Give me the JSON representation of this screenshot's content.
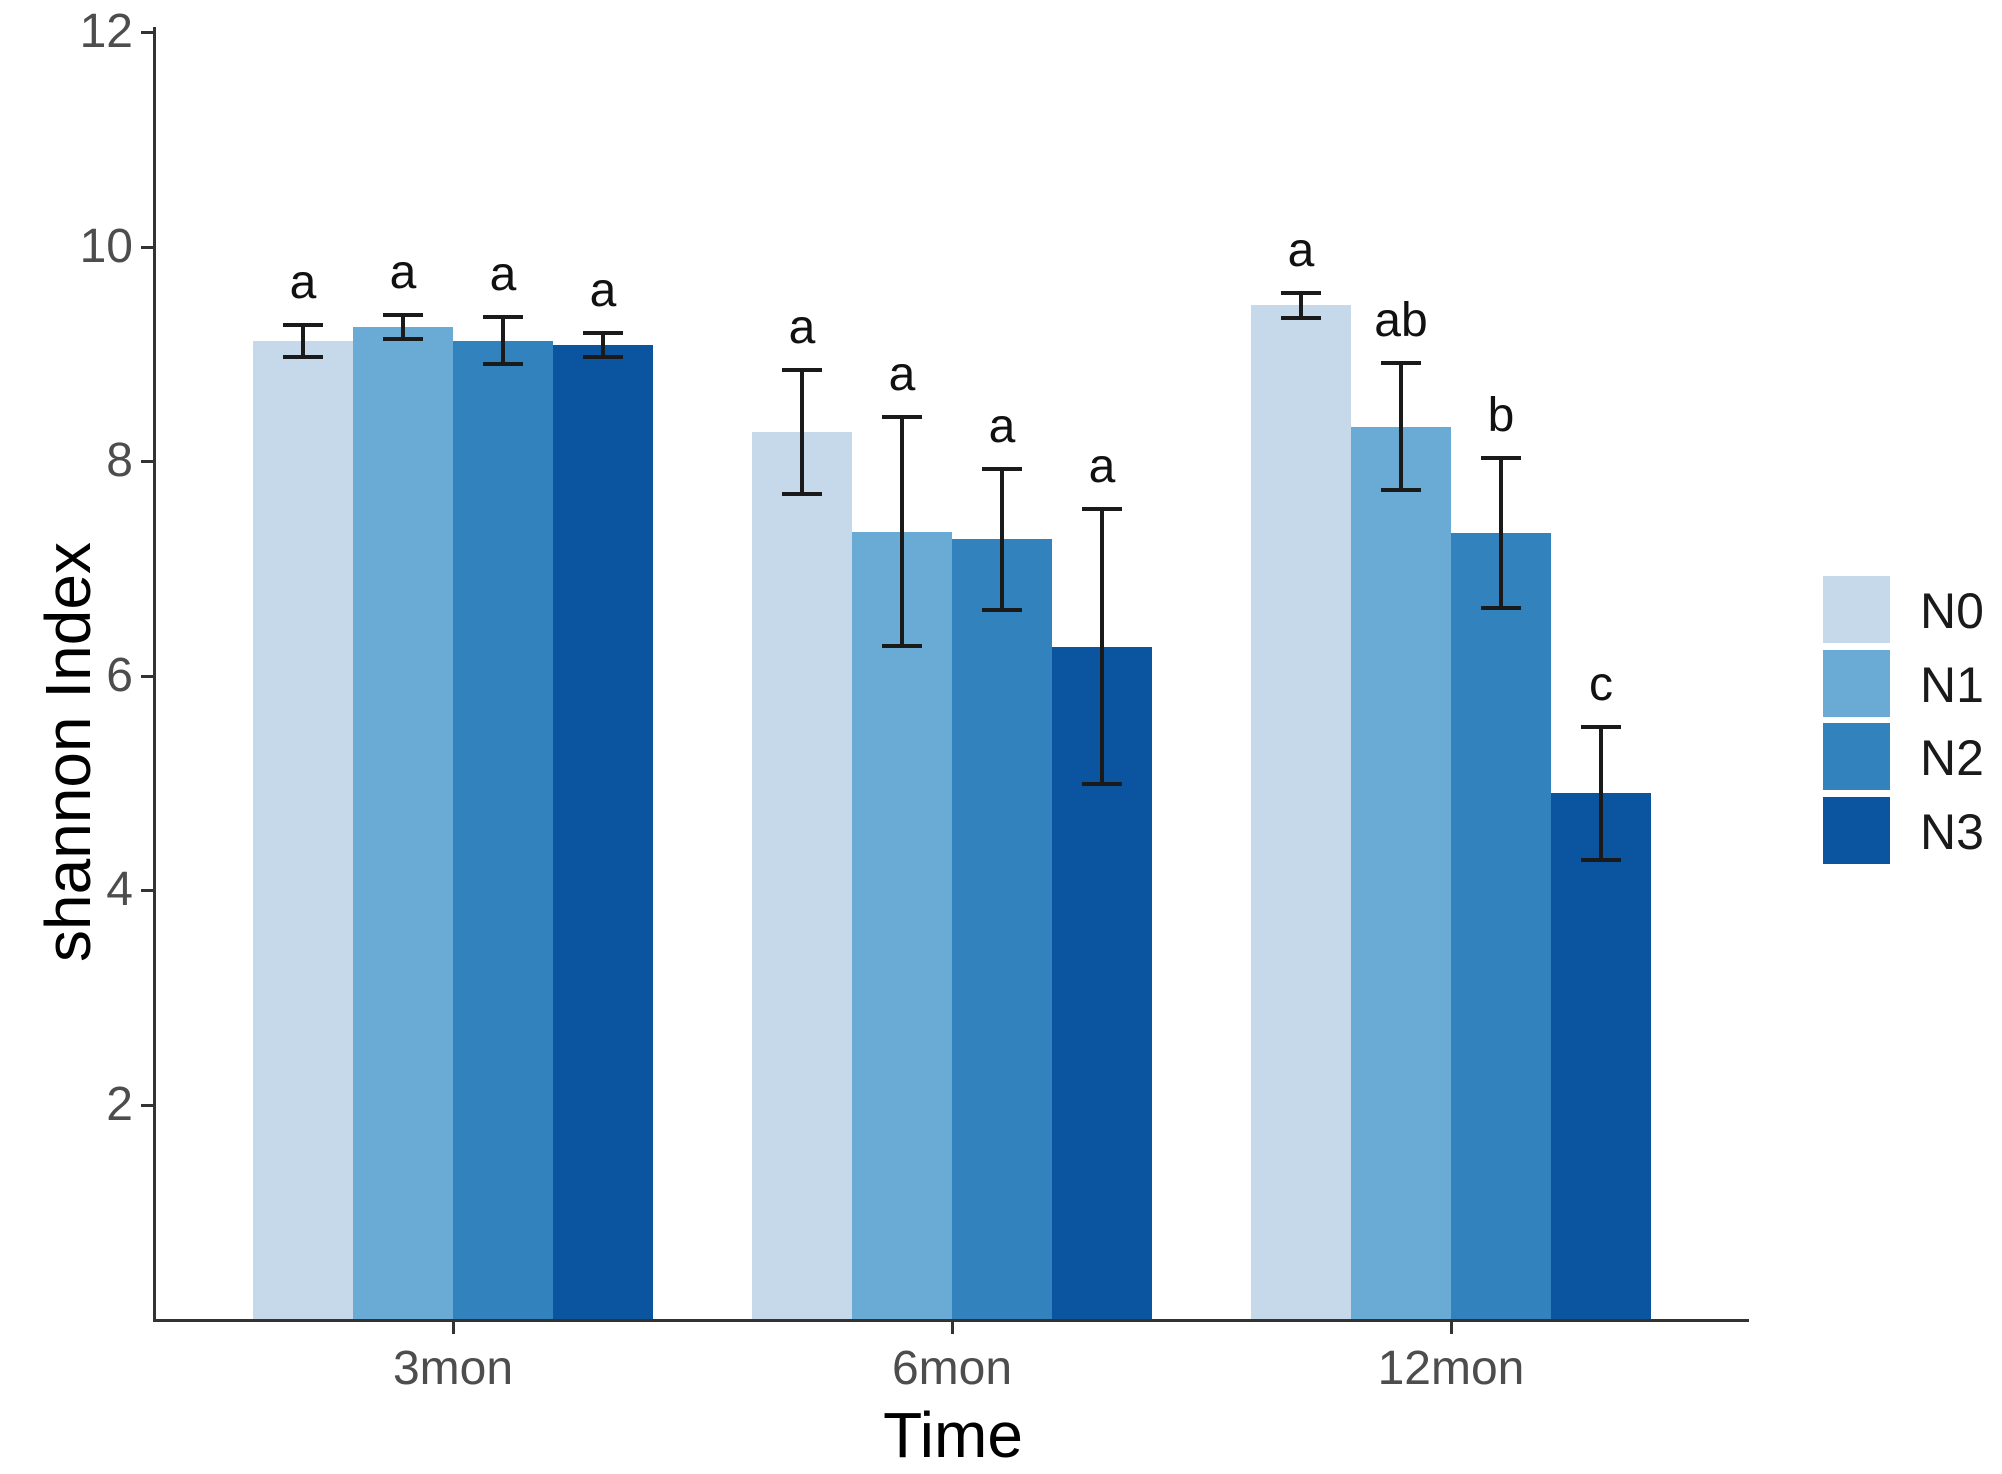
{
  "chart_data": {
    "type": "bar",
    "title": "",
    "xlabel": "Time",
    "ylabel": "shannon Index",
    "categories": [
      "3mon",
      "6mon",
      "12mon"
    ],
    "series": [
      {
        "name": "N0",
        "color": "#c5d9ea",
        "values": [
          9.12,
          8.27,
          9.45
        ],
        "errors": [
          0.14,
          0.57,
          0.11
        ],
        "letters": [
          "a",
          "a",
          "a"
        ]
      },
      {
        "name": "N1",
        "color": "#6aabd6",
        "values": [
          9.25,
          7.34,
          8.32
        ],
        "errors": [
          0.1,
          1.06,
          0.58
        ],
        "letters": [
          "a",
          "a",
          "ab"
        ]
      },
      {
        "name": "N2",
        "color": "#3182bd",
        "values": [
          9.12,
          7.27,
          7.33
        ],
        "errors": [
          0.21,
          0.65,
          0.69
        ],
        "letters": [
          "a",
          "a",
          "b"
        ]
      },
      {
        "name": "N3",
        "color": "#0b55a0",
        "values": [
          9.08,
          6.27,
          4.9
        ],
        "errors": [
          0.1,
          1.27,
          0.61
        ],
        "letters": [
          "a",
          "a",
          "c"
        ]
      }
    ],
    "y_ticks": [
      2,
      4,
      6,
      8,
      10,
      12
    ],
    "ylim": [
      0,
      12
    ],
    "grid": false,
    "legend_position": "right",
    "axis_color": "#333333",
    "tick_label_color": "#4d4d4d",
    "error_bar_color": "#1a1a1a",
    "sig_letter_color": "#111111"
  }
}
